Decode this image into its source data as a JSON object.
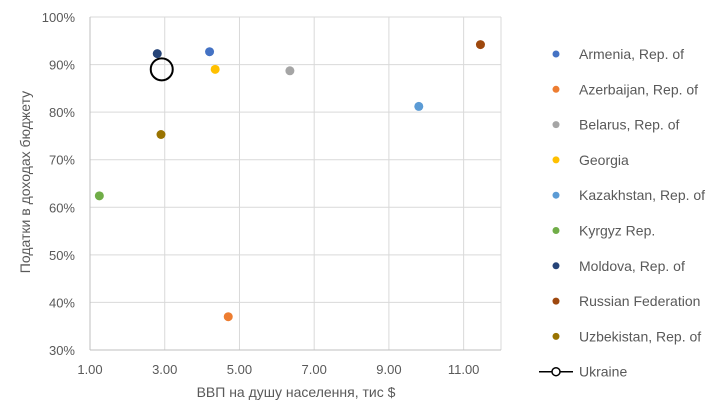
{
  "chart_data": {
    "type": "scatter",
    "xlabel": "ВВП на душу населення, тис $",
    "ylabel": "Податки в доходах бюджету",
    "xlim": [
      1.0,
      12.0
    ],
    "ylim": [
      30,
      100
    ],
    "x_ticks": [
      "1.00",
      "3.00",
      "5.00",
      "7.00",
      "9.00",
      "11.00"
    ],
    "y_ticks": [
      "30%",
      "40%",
      "50%",
      "60%",
      "70%",
      "80%",
      "90%",
      "100%"
    ],
    "x_tick_values": [
      1,
      3,
      5,
      7,
      9,
      11
    ],
    "y_tick_values": [
      30,
      40,
      50,
      60,
      70,
      80,
      90,
      100
    ],
    "grid": true,
    "legend_position": "right",
    "series": [
      {
        "name": "Armenia, Rep. of",
        "color": "#4472c4",
        "x": 4.2,
        "y": 92.7
      },
      {
        "name": "Azerbaijan, Rep. of",
        "color": "#ed7d31",
        "x": 4.7,
        "y": 37.0
      },
      {
        "name": "Belarus, Rep. of",
        "color": "#a5a5a5",
        "x": 6.35,
        "y": 88.7
      },
      {
        "name": "Georgia",
        "color": "#ffc000",
        "x": 4.35,
        "y": 89.0
      },
      {
        "name": "Kazakhstan, Rep. of",
        "color": "#5b9bd5",
        "x": 9.8,
        "y": 81.2
      },
      {
        "name": "Kyrgyz Rep.",
        "color": "#70ad47",
        "x": 1.25,
        "y": 62.4
      },
      {
        "name": "Moldova, Rep. of",
        "color": "#264478",
        "x": 2.8,
        "y": 92.3
      },
      {
        "name": "Russian Federation",
        "color": "#9e480e",
        "x": 11.45,
        "y": 94.2
      },
      {
        "name": "Uzbekistan, Rep. of",
        "color": "#997300",
        "x": 2.9,
        "y": 75.3
      },
      {
        "name": "Ukraine",
        "color": "#000000",
        "x": 2.92,
        "y": 89.0,
        "marker": "hollow-circle"
      }
    ]
  }
}
